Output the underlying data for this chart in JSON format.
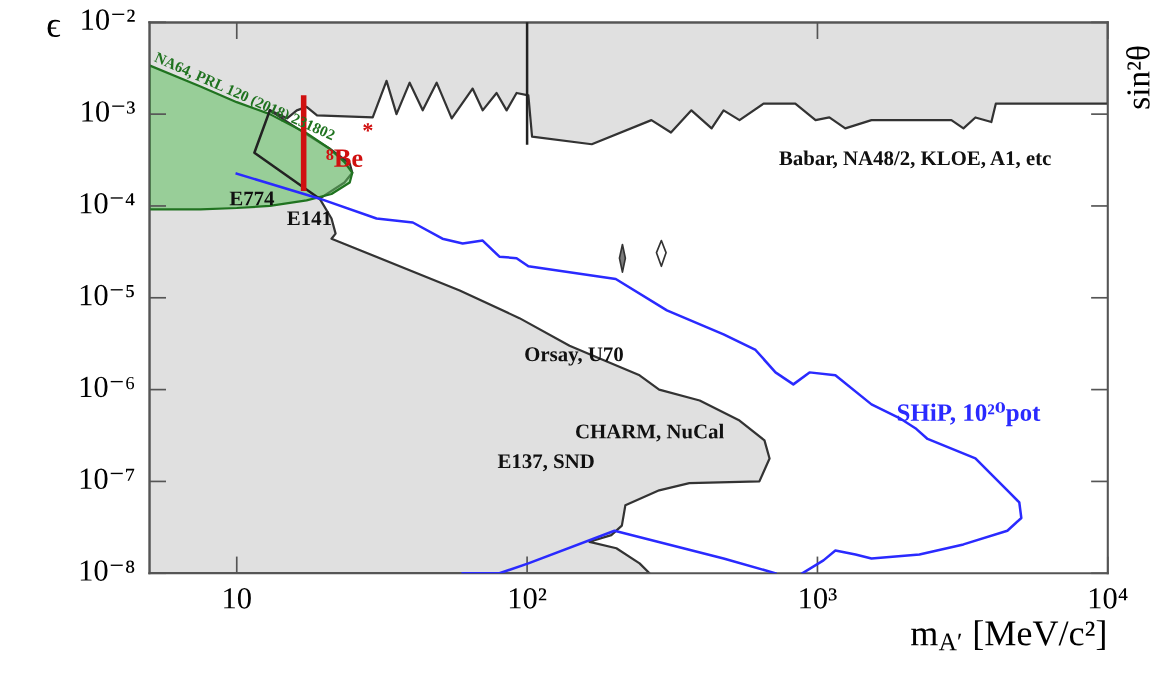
{
  "chart_data": {
    "type": "area",
    "xlabel": "m$_{A′}$ [MeV/c²]",
    "ylabel": "ϵ",
    "y2label": "sin²θ",
    "log": "xy",
    "xlim": [
      5,
      10000
    ],
    "xticks": [
      {
        "value": 10,
        "label": "10"
      },
      {
        "value": 100,
        "label": "10²"
      },
      {
        "value": 1000,
        "label": "10³"
      },
      {
        "value": 10000,
        "label": "10⁴"
      }
    ],
    "ylim": [
      1e-08,
      0.01
    ],
    "yticks": [
      {
        "value": 1e-08,
        "label": "10⁻⁸"
      },
      {
        "value": 1e-07,
        "label": "10⁻⁷"
      },
      {
        "value": 1e-06,
        "label": "10⁻⁶"
      },
      {
        "value": 1e-05,
        "label": "10⁻⁵"
      },
      {
        "value": 0.0001,
        "label": "10⁻⁴"
      },
      {
        "value": 0.001,
        "label": "10⁻³"
      },
      {
        "value": 0.01,
        "label": "10⁻²"
      }
    ],
    "series": [
      {
        "color": "#e0e0e0",
        "x": [
          5,
          10000,
          10000,
          4114,
          3972,
          3500,
          3183,
          2893,
          1535,
          1247,
          1099,
          985,
          839,
          652,
          539,
          475,
          432,
          368,
          313,
          268,
          167,
          104,
          101,
          92,
          85,
          78.5,
          70.3,
          64.9,
          55,
          48.8,
          43.7,
          39.4,
          35.5,
          32.8,
          29.4,
          18.9,
          17.4,
          16.1,
          14.9,
          13.0,
          16.5,
          20.9,
          24.5,
          25.0,
          23.5,
          19.3,
          21.2,
          21.9,
          21.2,
          58.6,
          94.1,
          140,
          177,
          244,
          285,
          393,
          539,
          657,
          684,
          631,
          362,
          285,
          218,
          212,
          195,
          164,
          203,
          244,
          264,
          5
        ],
        "values": [
          0.01,
          0.01,
          0.0013,
          0.0013,
          0.00082,
          0.00092,
          0.0007,
          0.00086,
          0.00086,
          0.0007,
          0.00092,
          0.00086,
          0.0013,
          0.0013,
          0.00086,
          0.0011,
          0.0007,
          0.0011,
          0.00063,
          0.00086,
          0.00047,
          0.00057,
          0.0016,
          0.0017,
          0.0011,
          0.0017,
          0.0011,
          0.0019,
          0.0009,
          0.0022,
          0.0011,
          0.0022,
          0.001,
          0.0023,
          0.00092,
          0.00097,
          0.0012,
          0.0011,
          0.0009,
          0.0011,
          0.00067,
          0.00042,
          0.00029,
          0.00023,
          0.00018,
          0.00012,
          7.3e-05,
          5e-05,
          4.4e-05,
          1.2e-05,
          6e-06,
          3e-06,
          2.2e-06,
          1.43e-06,
          1e-06,
          7.6e-07,
          4.6e-07,
          2.8e-07,
          1.78e-07,
          1e-07,
          9.6e-08,
          8e-08,
          5.5e-08,
          3.3e-08,
          2.6e-08,
          2.2e-08,
          1.87e-08,
          1.28e-08,
          1e-08,
          1e-08
        ]
      },
      {
        "type": "line",
        "color": "#222222",
        "x": [
          100,
          100
        ],
        "values": [
          0.01,
          0.00048
        ]
      },
      {
        "type": "area",
        "name": "NA64, PRL 120 (2018) 231802",
        "color": "#5cc05c",
        "x": [
          5,
          7.5,
          10,
          13,
          17.4,
          20.9,
          23.5,
          25.0,
          24.5,
          21.2,
          17.4,
          13,
          10,
          7.5,
          5
        ],
        "values": [
          0.0034,
          0.002,
          0.00135,
          0.001,
          0.00062,
          0.00042,
          0.0003,
          0.00023,
          0.00018,
          0.000135,
          0.000115,
          0.0001,
          9.5e-05,
          9.2e-05,
          9.2e-05
        ]
      },
      {
        "type": "line",
        "color": "#222222",
        "x": [
          13.0,
          11.5,
          19.3
        ],
        "values": [
          0.0011,
          0.00038,
          0.00012
        ]
      },
      {
        "type": "area",
        "color": "#111111",
        "x": [
          213,
          218,
          213,
          208,
          213
        ],
        "values": [
          3.8e-05,
          2.7e-05,
          1.9e-05,
          2.7e-05,
          3.8e-05
        ]
      },
      {
        "type": "area",
        "color": "#ffffff",
        "x": [
          290,
          301,
          290,
          279,
          290
        ],
        "values": [
          4.2e-05,
          3.1e-05,
          2.2e-05,
          3.1e-05,
          4.2e-05
        ]
      },
      {
        "type": "line",
        "name": "⁸Be",
        "color": "#d01010",
        "x": [
          17,
          17
        ],
        "values": [
          0.0015,
          0.000156
        ]
      },
      {
        "type": "line",
        "name": "SHiP, 10²⁰pot",
        "color": "#2a2aff",
        "x": [
          10,
          19.3,
          30.3,
          40.4,
          51.1,
          60,
          70.3,
          80.3,
          92,
          101,
          202,
          303,
          475,
          612,
          717,
          826,
          939,
          1153,
          1535,
          1916,
          2174,
          2395,
          3500,
          3972,
          4509,
          4957,
          5037,
          4509,
          3183,
          2245,
          1535,
          1352,
          1153,
          1049,
          888
        ],
        "values": [
          0.000225,
          0.00012,
          7.3e-05,
          6.6e-05,
          4.4e-05,
          3.9e-05,
          4.2e-05,
          2.8e-05,
          2.7e-05,
          2.2e-05,
          1.6e-05,
          7.3e-06,
          4e-06,
          2.7e-06,
          1.54e-06,
          1.14e-06,
          1.54e-06,
          1.43e-06,
          6.9e-07,
          4.9e-07,
          3.8e-07,
          2.9e-07,
          1.78e-07,
          1.19e-07,
          8e-08,
          5.9e-08,
          4e-08,
          2.9e-08,
          2.06e-08,
          1.6e-08,
          1.45e-08,
          1.6e-08,
          1.77e-08,
          1.38e-08,
          1e-08
        ]
      },
      {
        "type": "line",
        "color": "#2a2aff",
        "x": [
          60,
          80.3,
          101,
          200,
          475,
          717
        ],
        "values": [
          1e-08,
          1e-08,
          1.28e-08,
          2.9e-08,
          1.45e-08,
          1e-08
        ]
      }
    ],
    "annotations": [
      "E774",
      "E141",
      "Babar, NA48/2, KLOE, A1, etc",
      "Orsay, U70",
      "CHARM, NuCal",
      "E137, SND",
      "*"
    ]
  }
}
